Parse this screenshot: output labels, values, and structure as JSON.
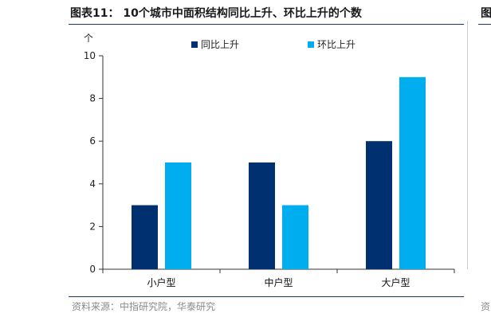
{
  "header": {
    "title": "图表11： 10个城市中面积结构同比上升、环比上升的个数",
    "right_fragment": "图"
  },
  "footer": {
    "source": "资料来源：中指研究院，华泰研究",
    "right_fragment": "资"
  },
  "colors": {
    "series_yoy": "#003070",
    "series_mom": "#00AEEF",
    "axis": "#333333"
  },
  "chart_data": {
    "type": "bar",
    "title": "10个城市中面积结构同比上升、环比上升的个数",
    "ylabel": "个",
    "xlabel": "",
    "ylim": [
      0,
      10
    ],
    "yticks": [
      0,
      2,
      4,
      6,
      8,
      10
    ],
    "categories": [
      "小户型",
      "中户型",
      "大户型"
    ],
    "series": [
      {
        "name": "同比上升",
        "values": [
          3,
          5,
          6
        ]
      },
      {
        "name": "环比上升",
        "values": [
          5,
          3,
          9
        ]
      }
    ],
    "legend_position": "top"
  }
}
